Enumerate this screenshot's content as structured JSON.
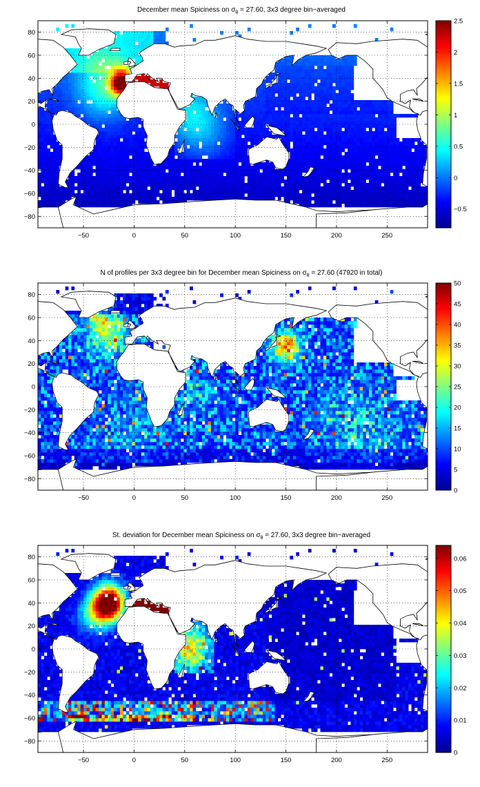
{
  "chart_data": [
    {
      "type": "heatmap",
      "title": "December mean Spiciness on σθ = 27.60, 3x3 degree bin−averaged",
      "title_parts": {
        "before": "December mean Spiciness on σ",
        "sub": "θ",
        "after": " = 27.60, 3x3 degree bin−averaged"
      },
      "xlim": [
        -95,
        290
      ],
      "ylim": [
        -90,
        90
      ],
      "xticks": [
        -50,
        0,
        50,
        100,
        150,
        200,
        250
      ],
      "yticks": [
        -80,
        -60,
        -40,
        -20,
        0,
        20,
        40,
        60,
        80
      ],
      "grid": true,
      "colormap": "jet",
      "clim": [
        -0.8,
        2.5
      ],
      "colorbar_ticks": [
        "−0.5",
        "0",
        "0.5",
        "1",
        "1.5",
        "2",
        "2.5"
      ],
      "colorbar_tick_values": [
        -0.5,
        0,
        0.5,
        1,
        1.5,
        2,
        2.5
      ],
      "bin_size_deg": 3,
      "field": "spiciness"
    },
    {
      "type": "heatmap",
      "title": "N of profiles per 3x3 degree bin for December mean Spiciness on σθ = 27.60 (47920 in total)",
      "title_parts": {
        "before": "N of profiles per 3x3 degree bin for December mean Spiciness on σ",
        "sub": "θ",
        "after": " = 27.60 (47920 in total)"
      },
      "xlim": [
        -95,
        290
      ],
      "ylim": [
        -90,
        90
      ],
      "xticks": [
        -50,
        0,
        50,
        100,
        150,
        200,
        250
      ],
      "yticks": [
        -80,
        -60,
        -40,
        -20,
        0,
        20,
        40,
        60,
        80
      ],
      "grid": true,
      "colormap": "jet",
      "clim": [
        0,
        50
      ],
      "colorbar_ticks": [
        "0",
        "5",
        "10",
        "15",
        "20",
        "25",
        "30",
        "35",
        "40",
        "45",
        "50"
      ],
      "colorbar_tick_values": [
        0,
        5,
        10,
        15,
        20,
        25,
        30,
        35,
        40,
        45,
        50
      ],
      "bin_size_deg": 3,
      "field": "count"
    },
    {
      "type": "heatmap",
      "title": "St. deviation for December mean Spiciness on σθ = 27.60, 3x3 degree bin−averaged",
      "title_parts": {
        "before": "St. deviation for December mean Spiciness on σ",
        "sub": "θ",
        "after": " = 27.60, 3x3 degree bin−averaged"
      },
      "xlim": [
        -95,
        290
      ],
      "ylim": [
        -90,
        90
      ],
      "xticks": [
        -50,
        0,
        50,
        100,
        150,
        200,
        250
      ],
      "yticks": [
        -80,
        -60,
        -40,
        -20,
        0,
        20,
        40,
        60,
        80
      ],
      "grid": true,
      "colormap": "jet",
      "clim": [
        0,
        0.064
      ],
      "colorbar_ticks": [
        "0",
        "0.01",
        "0.02",
        "0.03",
        "0.04",
        "0.05",
        "0.06"
      ],
      "colorbar_tick_values": [
        0,
        0.01,
        0.02,
        0.03,
        0.04,
        0.05,
        0.06
      ],
      "bin_size_deg": 3,
      "field": "std"
    }
  ]
}
